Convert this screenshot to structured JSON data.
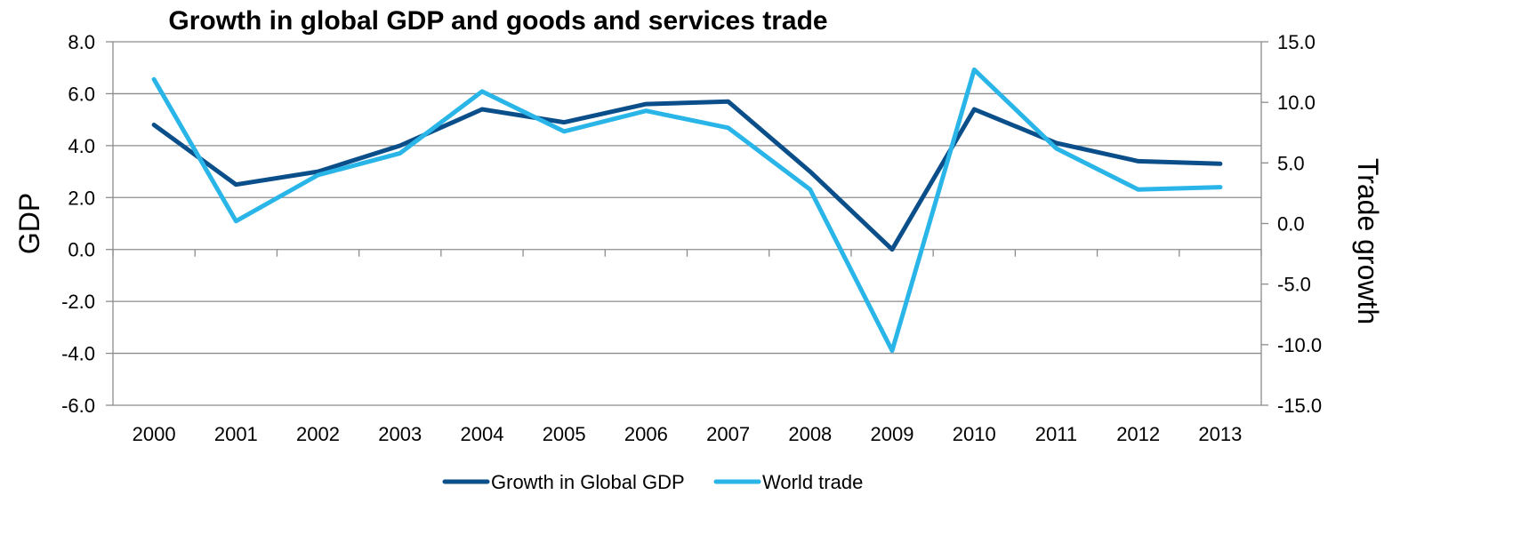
{
  "chart_data": {
    "type": "line",
    "title": "Growth in global GDP and goods and services trade",
    "ylabel": "GDP",
    "y2label": "Trade growth",
    "categories": [
      "2000",
      "2001",
      "2002",
      "2003",
      "2004",
      "2005",
      "2006",
      "2007",
      "2008",
      "2009",
      "2010",
      "2011",
      "2012",
      "2013"
    ],
    "ylim": [
      -6,
      8
    ],
    "y2lim": [
      -15,
      15
    ],
    "y_ticks": [
      "8.0",
      "6.0",
      "4.0",
      "2.0",
      "0.0",
      "-2.0",
      "-4.0",
      "-6.0"
    ],
    "y2_ticks": [
      "15.0",
      "10.0",
      "5.0",
      "0.0",
      "-5.0",
      "-10.0",
      "-15.0"
    ],
    "grid": true,
    "legend_position": "bottom-center",
    "series": [
      {
        "name": "Growth in Global GDP",
        "axis": "left",
        "color": "#0b4f8a",
        "values": [
          4.8,
          2.5,
          3.0,
          4.0,
          5.4,
          4.9,
          5.6,
          5.7,
          3.0,
          0.0,
          5.4,
          4.1,
          3.4,
          3.3
        ]
      },
      {
        "name": "World trade",
        "axis": "right",
        "color": "#29b5e8",
        "values": [
          11.9,
          0.2,
          4.0,
          5.8,
          10.9,
          7.6,
          9.3,
          7.9,
          2.8,
          -10.5,
          12.7,
          6.2,
          2.8,
          3.0
        ]
      }
    ]
  }
}
